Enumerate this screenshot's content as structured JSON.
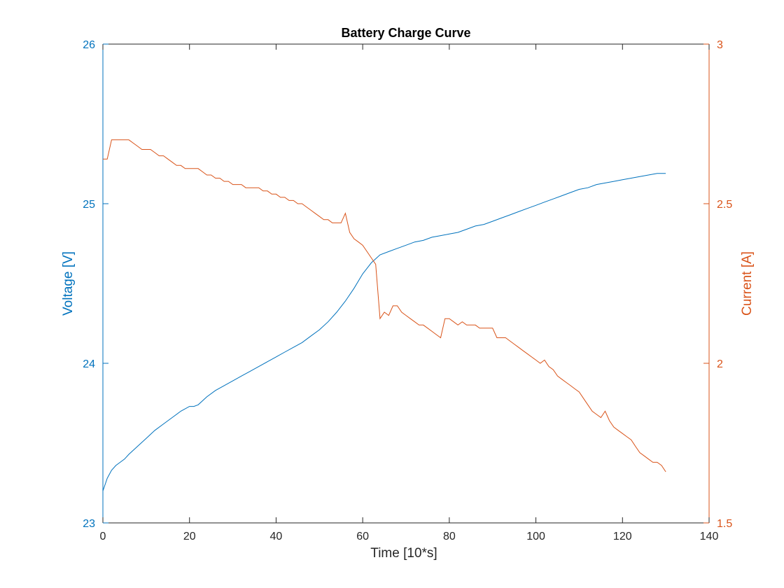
{
  "chart_data": {
    "type": "line",
    "title": "Battery Charge Curve",
    "xlabel": "Time [10*s]",
    "ylabel_left": "Voltage [V]",
    "ylabel_right": "Current [A]",
    "xlim": [
      0,
      140
    ],
    "ylim_left": [
      23,
      26
    ],
    "ylim_right": [
      1.5,
      3
    ],
    "x_ticks": [
      "0",
      "20",
      "40",
      "60",
      "80",
      "100",
      "120",
      "140"
    ],
    "y_ticks_left": [
      "23",
      "24",
      "25",
      "26"
    ],
    "y_ticks_right": [
      "1.5",
      "2",
      "2.5",
      "3"
    ],
    "grid": false,
    "colors": {
      "voltage": "#0072BD",
      "current": "#D95319",
      "axes": "#262626"
    },
    "series": [
      {
        "axis": "left",
        "x": [
          0,
          1,
          2,
          3,
          4,
          5,
          6,
          8,
          10,
          12,
          14,
          16,
          18,
          20,
          21,
          22,
          24,
          26,
          28,
          30,
          32,
          34,
          36,
          38,
          40,
          42,
          44,
          46,
          48,
          50,
          52,
          54,
          56,
          58,
          60,
          62,
          64,
          66,
          68,
          70,
          72,
          74,
          76,
          78,
          80,
          82,
          84,
          86,
          88,
          90,
          92,
          94,
          96,
          98,
          100,
          102,
          104,
          106,
          108,
          110,
          112,
          114,
          116,
          118,
          120,
          122,
          124,
          126,
          128,
          130
        ],
        "values": [
          23.2,
          23.28,
          23.33,
          23.36,
          23.38,
          23.4,
          23.43,
          23.48,
          23.53,
          23.58,
          23.62,
          23.66,
          23.7,
          23.73,
          23.73,
          23.74,
          23.79,
          23.83,
          23.86,
          23.89,
          23.92,
          23.95,
          23.98,
          24.01,
          24.04,
          24.07,
          24.1,
          24.13,
          24.17,
          24.21,
          24.26,
          24.32,
          24.39,
          24.47,
          24.56,
          24.63,
          24.68,
          24.7,
          24.72,
          24.74,
          24.76,
          24.77,
          24.79,
          24.8,
          24.81,
          24.82,
          24.84,
          24.86,
          24.87,
          24.89,
          24.91,
          24.93,
          24.95,
          24.97,
          24.99,
          25.01,
          25.03,
          25.05,
          25.07,
          25.09,
          25.1,
          25.12,
          25.13,
          25.14,
          25.15,
          25.16,
          25.17,
          25.18,
          25.19,
          25.19
        ]
      },
      {
        "axis": "right",
        "x": [
          0,
          1,
          2,
          3,
          4,
          5,
          6,
          7,
          8,
          9,
          10,
          11,
          12,
          13,
          14,
          15,
          16,
          17,
          18,
          19,
          20,
          21,
          22,
          23,
          24,
          25,
          26,
          27,
          28,
          29,
          30,
          31,
          32,
          33,
          34,
          35,
          36,
          37,
          38,
          39,
          40,
          41,
          42,
          43,
          44,
          45,
          46,
          47,
          48,
          49,
          50,
          51,
          52,
          53,
          54,
          55,
          56,
          57,
          58,
          59,
          60,
          61,
          62,
          63,
          64,
          65,
          66,
          67,
          68,
          69,
          70,
          71,
          72,
          73,
          74,
          75,
          76,
          77,
          78,
          79,
          80,
          81,
          82,
          83,
          84,
          85,
          86,
          87,
          88,
          89,
          90,
          91,
          92,
          93,
          94,
          95,
          96,
          97,
          98,
          99,
          100,
          101,
          102,
          103,
          104,
          105,
          106,
          107,
          108,
          109,
          110,
          111,
          112,
          113,
          114,
          115,
          116,
          117,
          118,
          119,
          120,
          121,
          122,
          123,
          124,
          125,
          126,
          127,
          128,
          129,
          130
        ],
        "values": [
          2.64,
          2.64,
          2.7,
          2.7,
          2.7,
          2.7,
          2.7,
          2.69,
          2.68,
          2.67,
          2.67,
          2.67,
          2.66,
          2.65,
          2.65,
          2.64,
          2.63,
          2.62,
          2.62,
          2.61,
          2.61,
          2.61,
          2.61,
          2.6,
          2.59,
          2.59,
          2.58,
          2.58,
          2.57,
          2.57,
          2.56,
          2.56,
          2.56,
          2.55,
          2.55,
          2.55,
          2.55,
          2.54,
          2.54,
          2.53,
          2.53,
          2.52,
          2.52,
          2.51,
          2.51,
          2.5,
          2.5,
          2.49,
          2.48,
          2.47,
          2.46,
          2.45,
          2.45,
          2.44,
          2.44,
          2.44,
          2.47,
          2.41,
          2.39,
          2.38,
          2.37,
          2.35,
          2.33,
          2.31,
          2.14,
          2.16,
          2.15,
          2.18,
          2.18,
          2.16,
          2.15,
          2.14,
          2.13,
          2.12,
          2.12,
          2.11,
          2.1,
          2.09,
          2.08,
          2.14,
          2.14,
          2.13,
          2.12,
          2.13,
          2.12,
          2.12,
          2.12,
          2.11,
          2.11,
          2.11,
          2.11,
          2.08,
          2.08,
          2.08,
          2.07,
          2.06,
          2.05,
          2.04,
          2.03,
          2.02,
          2.01,
          2.0,
          2.01,
          1.99,
          1.98,
          1.96,
          1.95,
          1.94,
          1.93,
          1.92,
          1.91,
          1.89,
          1.87,
          1.85,
          1.84,
          1.83,
          1.85,
          1.82,
          1.8,
          1.79,
          1.78,
          1.77,
          1.76,
          1.74,
          1.72,
          1.71,
          1.7,
          1.69,
          1.69,
          1.68,
          1.66
        ]
      }
    ]
  }
}
